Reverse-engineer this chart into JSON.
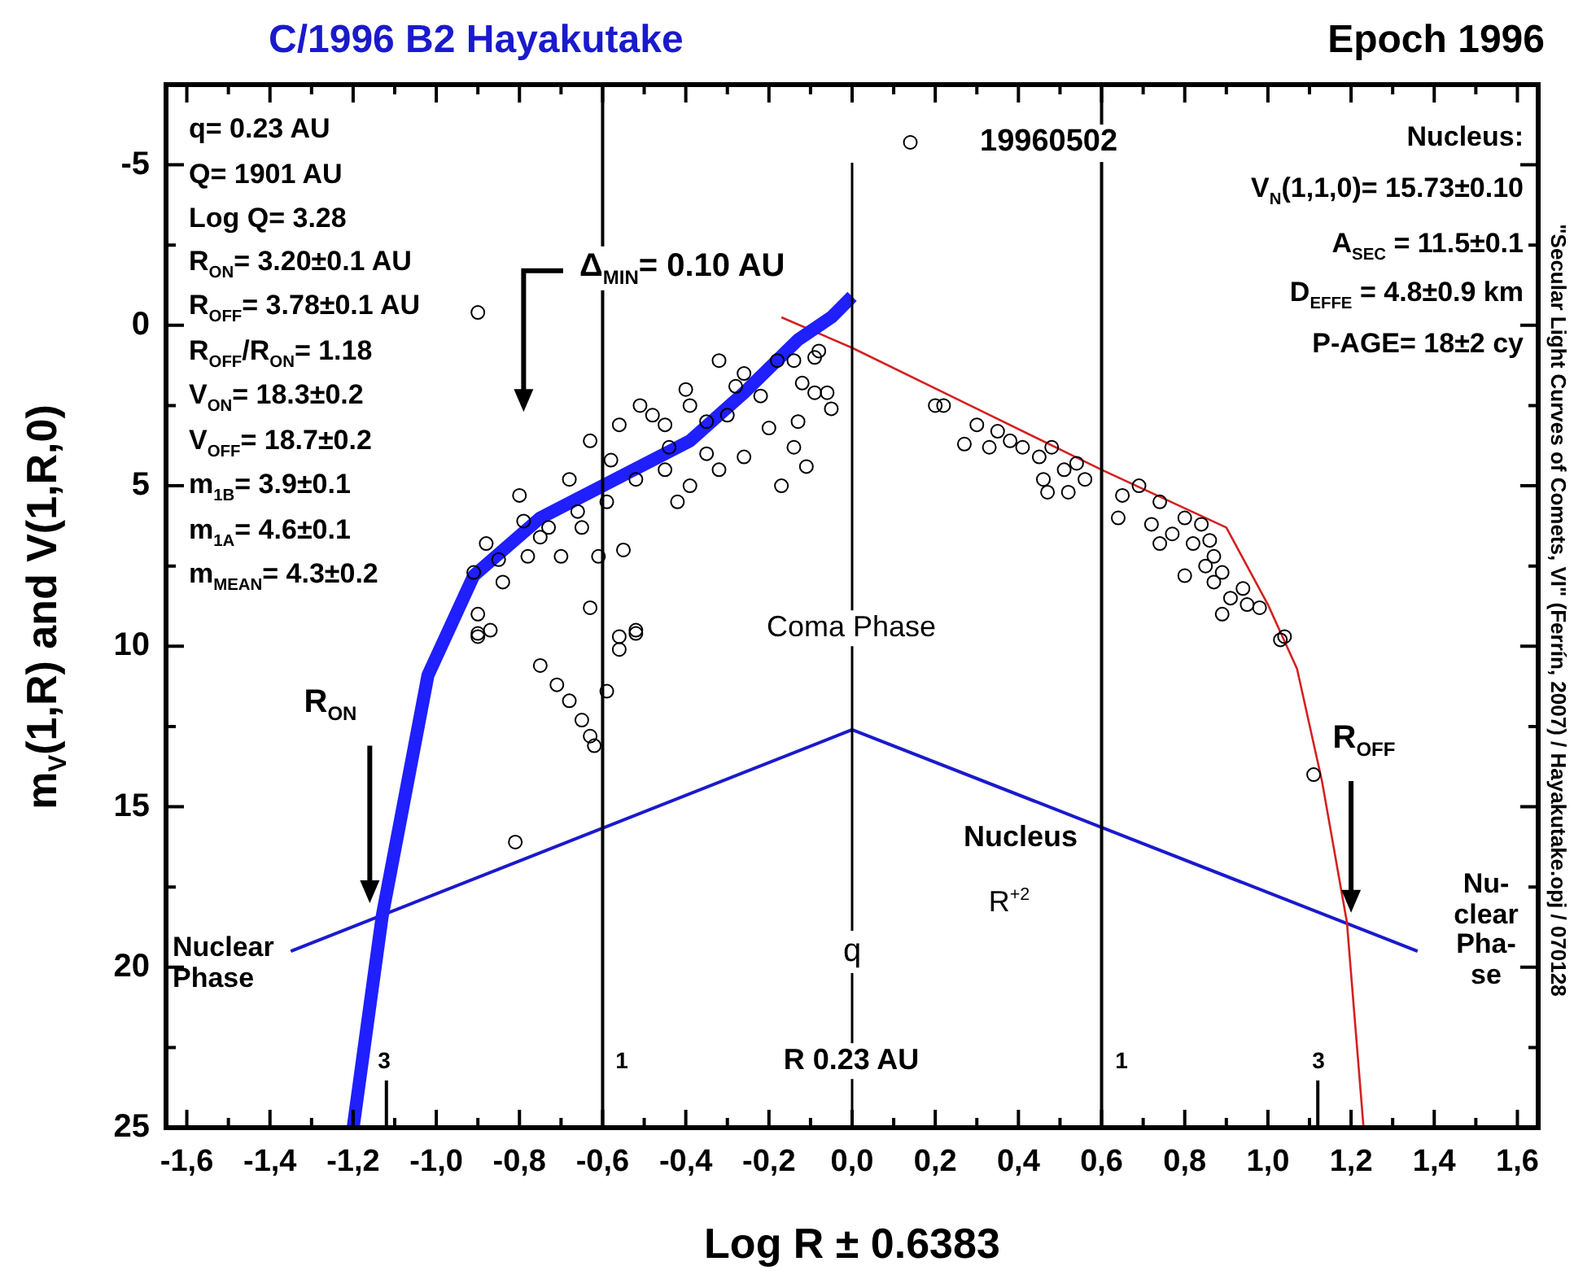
{
  "chart_data": {
    "type": "scatter",
    "title": "C/1996 B2 Hayakutake",
    "subtitle": "Epoch 1996",
    "xlabel": "Log R ± 0.6383",
    "ylabel": "m$_{V}$(1,R) and V(1,R,0)",
    "xlim": [
      -1.65,
      1.65
    ],
    "ylim": [
      25,
      -7.5
    ],
    "xticks": [
      {
        "value": -1.6,
        "label": "-1,6"
      },
      {
        "value": -1.5,
        "label": null
      },
      {
        "value": -1.4,
        "label": "-1,4"
      },
      {
        "value": -1.3,
        "label": null
      },
      {
        "value": -1.2,
        "label": "-1,2"
      },
      {
        "value": -1.1,
        "label": null
      },
      {
        "value": -1.0,
        "label": "-1,0"
      },
      {
        "value": -0.9,
        "label": null
      },
      {
        "value": -0.8,
        "label": "-0,8"
      },
      {
        "value": -0.7,
        "label": null
      },
      {
        "value": -0.6,
        "label": "-0,6"
      },
      {
        "value": -0.5,
        "label": null
      },
      {
        "value": -0.4,
        "label": "-0,4"
      },
      {
        "value": -0.3,
        "label": null
      },
      {
        "value": -0.2,
        "label": "-0,2"
      },
      {
        "value": -0.1,
        "label": null
      },
      {
        "value": 0,
        "label": "0,0"
      },
      {
        "value": 0.1,
        "label": null
      },
      {
        "value": 0.2,
        "label": "0,2"
      },
      {
        "value": 0.3,
        "label": null
      },
      {
        "value": 0.4,
        "label": "0,4"
      },
      {
        "value": 0.5,
        "label": null
      },
      {
        "value": 0.6,
        "label": "0,6"
      },
      {
        "value": 0.7,
        "label": null
      },
      {
        "value": 0.8,
        "label": "0,8"
      },
      {
        "value": 0.9,
        "label": null
      },
      {
        "value": 1.0,
        "label": "1,0"
      },
      {
        "value": 1.1,
        "label": null
      },
      {
        "value": 1.2,
        "label": "1,2"
      },
      {
        "value": 1.3,
        "label": null
      },
      {
        "value": 1.4,
        "label": "1,4"
      },
      {
        "value": 1.5,
        "label": null
      },
      {
        "value": 1.6,
        "label": "1,6"
      }
    ],
    "yticks": [
      -5,
      {
        "value": -2.5,
        "label": null
      },
      0,
      {
        "value": 2.5,
        "label": null
      },
      5,
      {
        "value": 7.5,
        "label": null
      },
      10,
      {
        "value": 12.5,
        "label": null
      },
      15,
      {
        "value": 17.5,
        "label": null
      },
      20,
      {
        "value": 22.5,
        "label": null
      },
      25
    ],
    "series": [
      {
        "type": "scatter",
        "marker": "circle",
        "color": "#000000",
        "x": [
          -0.51,
          -0.8,
          -0.79,
          -0.88,
          -0.91,
          -0.9,
          -0.9,
          -0.56,
          -0.52,
          -0.63,
          -0.55,
          -0.7,
          -0.65,
          -0.68,
          -0.63,
          -0.56,
          -0.45,
          -0.39,
          -0.32,
          -0.26,
          -0.18,
          -0.14,
          -0.17,
          -0.26,
          -0.32,
          -0.39,
          -0.44,
          -0.52,
          -0.59,
          -0.61,
          -0.73,
          -0.78,
          -0.84,
          -0.09,
          -0.08,
          -0.13,
          -0.14,
          -0.09,
          -0.06,
          -0.05,
          -0.11,
          -0.45,
          -0.35,
          -0.3,
          -0.22,
          -0.2,
          -0.4,
          -0.48,
          -0.58,
          -0.66,
          -0.75,
          -0.85,
          -0.28,
          -0.12,
          -0.35,
          -0.42,
          -0.9,
          -0.9,
          -0.87,
          -0.75,
          -0.71,
          -0.68,
          -0.65,
          -0.63,
          -0.62,
          -0.81,
          -0.59,
          -0.56,
          -0.52,
          0.14,
          0.2,
          0.22,
          0.27,
          0.3,
          0.33,
          0.35,
          0.38,
          0.41,
          0.45,
          0.46,
          0.48,
          0.51,
          0.54,
          0.56,
          0.52,
          0.47,
          0.65,
          0.69,
          0.64,
          0.72,
          0.74,
          0.77,
          0.8,
          0.82,
          0.84,
          0.86,
          0.87,
          0.89,
          0.85,
          0.74,
          0.8,
          0.87,
          0.94,
          0.91,
          0.95,
          0.98,
          0.89,
          1.04,
          1.03,
          1.11
        ],
        "values": [
          2.5,
          5.3,
          6.1,
          6.8,
          7.7,
          9.0,
          9.7,
          9.7,
          9.5,
          8.8,
          7.0,
          7.2,
          6.3,
          4.8,
          3.6,
          3.1,
          3.1,
          2.5,
          1.1,
          1.5,
          1.1,
          3.8,
          5.0,
          4.1,
          4.5,
          5.0,
          3.8,
          4.8,
          5.5,
          7.2,
          6.3,
          7.2,
          8.0,
          2.1,
          0.8,
          3.0,
          1.1,
          1.0,
          2.1,
          2.6,
          4.4,
          4.5,
          3.0,
          2.8,
          2.2,
          3.2,
          2.0,
          2.8,
          4.2,
          5.8,
          6.6,
          7.3,
          1.9,
          1.8,
          4.0,
          5.5,
          -0.4,
          9.6,
          9.5,
          10.6,
          11.2,
          11.7,
          12.3,
          12.8,
          13.1,
          16.1,
          11.4,
          10.1,
          9.6,
          -5.7,
          2.5,
          2.5,
          3.7,
          3.1,
          3.8,
          3.3,
          3.6,
          3.8,
          4.1,
          4.8,
          3.8,
          4.5,
          4.3,
          4.8,
          5.2,
          5.2,
          5.3,
          5.0,
          6.0,
          6.2,
          5.5,
          6.5,
          6.0,
          6.8,
          6.2,
          6.7,
          7.2,
          7.7,
          7.5,
          6.8,
          7.8,
          8.0,
          8.2,
          8.5,
          8.7,
          8.8,
          9.0,
          9.7,
          9.8,
          14.0
        ]
      },
      {
        "type": "line",
        "marker": "none",
        "color": "#1f1fff",
        "x": [
          -1.2,
          -1.13,
          -1.02,
          -0.91,
          -0.75,
          -0.6,
          -0.39,
          -0.26,
          -0.13,
          -0.05,
          0
        ],
        "values": [
          25,
          18.4,
          10.9,
          7.8,
          6.0,
          5.0,
          3.6,
          2.1,
          0.45,
          -0.25,
          -0.9
        ]
      },
      {
        "type": "line",
        "marker": "none",
        "color": "#d42020",
        "x": [
          -0.17,
          0,
          0.3,
          0.6,
          0.9,
          1.0,
          1.07,
          1.13,
          1.19,
          1.23
        ],
        "values": [
          -0.25,
          0.7,
          2.6,
          4.5,
          6.3,
          8.7,
          10.7,
          14.2,
          18.6,
          25
        ]
      },
      {
        "type": "line",
        "marker": "none",
        "color": "#1a1acc",
        "x": [
          -1.35,
          0,
          1.36
        ],
        "values": [
          19.5,
          12.6,
          19.5
        ]
      }
    ],
    "ref_lines": [
      {
        "axis": "x",
        "value": -0.6
      },
      {
        "axis": "x",
        "value": 0.6
      },
      {
        "axis": "x",
        "value": 0,
        "label": "q"
      }
    ],
    "annotations": [
      "q= 0.23 AU",
      "Q= 1901 AU",
      "Log Q= 3.28",
      "R$_{ON}$= 3.20±0.1 AU",
      "R$_{OFF}$= 3.78±0.1 AU",
      "R$_{OFF}$/R$_{ON}$= 1.18",
      "V$_{ON}$= 18.3±0.2",
      "V$_{OFF}$= 18.7±0.2",
      "m$_{1B}$= 3.9±0.1",
      "m$_{1A}$= 4.6±0.1",
      "m$_{MEAN}$= 4.3±0.2",
      "Δ$_{MIN}$= 0.10 AU",
      "19960502",
      "Nucleus:",
      "V$_{N}$(1,1,0)= 15.73±0.10",
      "A$_{SEC}$ = 11.5±0.1",
      "D$_{EFFE}$ = 4.8±0.9 km",
      "P-AGE= 18±2 cy",
      "Coma Phase",
      "R$_{ON}$",
      "R$_{OFF}$",
      "Nuclear Phase",
      "Nucleus",
      "R$^{+2}$",
      "R 0.23 AU",
      "Nu-\nclear\nPha-\nse",
      "\"Secular Light Curves of Comets, VI\" (Ferrín, 2007) / Hayakutake.opj / 070128",
      "1",
      "1",
      "3",
      "3"
    ]
  }
}
